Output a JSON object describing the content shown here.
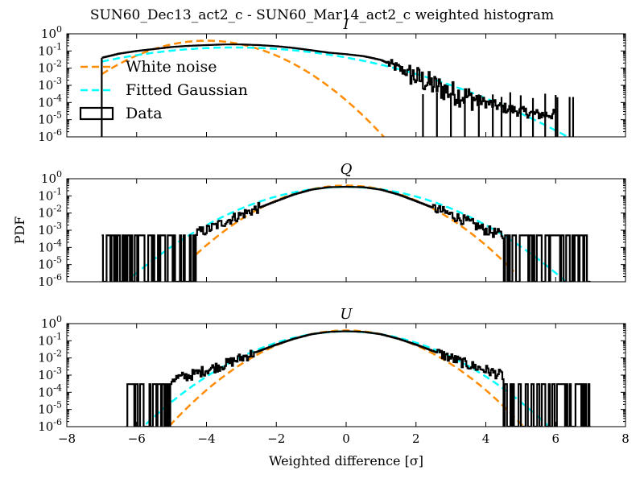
{
  "figure": {
    "suptitle": "SUN60_Dec13_act2_c - SUN60_Mar14_act2_c weighted histogram",
    "shared_xlabel": "Weighted difference [σ]",
    "shared_ylabel": "PDF",
    "x_ticks": [
      "−8",
      "−6",
      "−4",
      "−2",
      "0",
      "2",
      "4",
      "6",
      "8"
    ],
    "y_ticks": [
      {
        "base": "10",
        "exp": "0"
      },
      {
        "base": "10",
        "exp": "-1"
      },
      {
        "base": "10",
        "exp": "-2"
      },
      {
        "base": "10",
        "exp": "-3"
      },
      {
        "base": "10",
        "exp": "-4"
      },
      {
        "base": "10",
        "exp": "-5"
      },
      {
        "base": "10",
        "exp": "-6"
      }
    ]
  },
  "legend": {
    "placement": "upper-left of first panel",
    "entries": [
      {
        "label": "White noise",
        "style": "dashed",
        "color": "#ff8c00"
      },
      {
        "label": "Fitted Gaussian",
        "style": "dashed",
        "color": "#00ffff"
      },
      {
        "label": "Data",
        "style": "box",
        "color": "#000000"
      }
    ]
  },
  "colors": {
    "data": "#000000",
    "white_noise": "#ff8c00",
    "fitted_gaussian": "#00ffff",
    "axes": "#000000",
    "background": "#ffffff"
  },
  "chart_data": [
    {
      "type": "line",
      "title": "I",
      "xlim": [
        -8,
        8
      ],
      "ylim": [
        1e-06,
        1
      ],
      "yscale": "log",
      "grid": false,
      "series": [
        {
          "name": "White noise",
          "kind": "gaussian",
          "mean": -4.0,
          "sigma": 1.0,
          "x_range": [
            -7,
            8
          ]
        },
        {
          "name": "Fitted Gaussian",
          "kind": "gaussian",
          "mean": -3.2,
          "sigma": 1.95,
          "amplitude": 0.16,
          "x_range": [
            -7,
            7
          ]
        },
        {
          "name": "Data",
          "kind": "histogram-step",
          "points": [
            [
              -7,
              0.04
            ],
            [
              -6.5,
              0.07
            ],
            [
              -6,
              0.1
            ],
            [
              -5.5,
              0.13
            ],
            [
              -5,
              0.17
            ],
            [
              -4.5,
              0.2
            ],
            [
              -4,
              0.22
            ],
            [
              -3.5,
              0.24
            ],
            [
              -3,
              0.24
            ],
            [
              -2.5,
              0.22
            ],
            [
              -2,
              0.19
            ],
            [
              -1.5,
              0.15
            ],
            [
              -1,
              0.11
            ],
            [
              -0.5,
              0.08
            ],
            [
              0,
              0.065
            ],
            [
              0.5,
              0.05
            ],
            [
              1,
              0.03
            ],
            [
              1.5,
              0.01
            ],
            [
              2,
              0.003
            ],
            [
              2.5,
              0.001
            ],
            [
              3,
              0.0004
            ],
            [
              3.5,
              0.0002
            ],
            [
              4,
              0.0001
            ],
            [
              4.5,
              5e-05
            ],
            [
              5,
              3e-05
            ],
            [
              5.5,
              2e-05
            ],
            [
              6,
              2e-05
            ]
          ],
          "left_edge_x": -7,
          "sparse_spikes": [
            2.2,
            2.6,
            3.0,
            3.4,
            3.8,
            4.2,
            4.45,
            4.7,
            5.0,
            5.35,
            5.7,
            6.0,
            6.05,
            6.4,
            6.5
          ],
          "spike_level": 0.0003,
          "noise_region": [
            1.8,
            3.8
          ]
        }
      ]
    },
    {
      "type": "line",
      "title": "Q",
      "xlim": [
        -8,
        8
      ],
      "ylim": [
        1e-06,
        1
      ],
      "yscale": "log",
      "grid": false,
      "series": [
        {
          "name": "White noise",
          "kind": "gaussian",
          "mean": 0.0,
          "sigma": 1.0,
          "x_range": [
            -4.3,
            4.8
          ]
        },
        {
          "name": "Fitted Gaussian",
          "kind": "gaussian",
          "mean": 0.0,
          "sigma": 1.25,
          "amplitude": 0.33,
          "x_range": [
            -6.1,
            6.6
          ]
        },
        {
          "name": "Data",
          "kind": "histogram-step",
          "points": [
            [
              -7,
              0.0005
            ],
            [
              -6,
              0.0005
            ],
            [
              -5,
              0.0005
            ],
            [
              -4.3,
              0.0007
            ],
            [
              -4,
              0.001
            ],
            [
              -3.5,
              0.003
            ],
            [
              -3,
              0.008
            ],
            [
              -2.5,
              0.02
            ],
            [
              -2,
              0.05
            ],
            [
              -1.5,
              0.12
            ],
            [
              -1,
              0.23
            ],
            [
              -0.5,
              0.32
            ],
            [
              0,
              0.34
            ],
            [
              0.5,
              0.32
            ],
            [
              1,
              0.23
            ],
            [
              1.5,
              0.12
            ],
            [
              2,
              0.05
            ],
            [
              2.5,
              0.02
            ],
            [
              3,
              0.008
            ],
            [
              3.5,
              0.003
            ],
            [
              4,
              0.001
            ],
            [
              4.5,
              0.0005
            ],
            [
              5.5,
              0.0005
            ],
            [
              7,
              0.0005
            ]
          ],
          "sparse_regions": [
            [
              -7,
              -4.3
            ],
            [
              4.5,
              7
            ]
          ],
          "spike_level": 0.0005
        }
      ]
    },
    {
      "type": "line",
      "title": "U",
      "xlim": [
        -8,
        8
      ],
      "ylim": [
        1e-06,
        1
      ],
      "yscale": "log",
      "grid": false,
      "series": [
        {
          "name": "White noise",
          "kind": "gaussian",
          "mean": 0.0,
          "sigma": 1.0,
          "x_range": [
            -5.6,
            5.6
          ]
        },
        {
          "name": "Fitted Gaussian",
          "kind": "gaussian",
          "mean": 0.0,
          "sigma": 1.15,
          "amplitude": 0.35,
          "x_range": [
            -6.2,
            6.2
          ]
        },
        {
          "name": "Data",
          "kind": "histogram-step",
          "points": [
            [
              -6.3,
              0.0002
            ],
            [
              -5.5,
              0.0004
            ],
            [
              -5,
              0.0006
            ],
            [
              -4.5,
              0.0009
            ],
            [
              -4,
              0.002
            ],
            [
              -3.5,
              0.004
            ],
            [
              -3,
              0.01
            ],
            [
              -2.5,
              0.025
            ],
            [
              -2,
              0.06
            ],
            [
              -1.5,
              0.13
            ],
            [
              -1,
              0.24
            ],
            [
              -0.5,
              0.33
            ],
            [
              0,
              0.36
            ],
            [
              0.5,
              0.33
            ],
            [
              1,
              0.24
            ],
            [
              1.5,
              0.13
            ],
            [
              2,
              0.06
            ],
            [
              2.5,
              0.025
            ],
            [
              3,
              0.01
            ],
            [
              3.5,
              0.004
            ],
            [
              4,
              0.002
            ],
            [
              4.5,
              0.0009
            ],
            [
              5,
              0.0006
            ],
            [
              5.5,
              0.0004
            ],
            [
              6.3,
              0.0002
            ],
            [
              7,
              0.0002
            ]
          ],
          "sparse_regions": [
            [
              -6.4,
              -5.0
            ],
            [
              4.5,
              7
            ]
          ],
          "spike_level": 0.0003
        }
      ]
    }
  ]
}
